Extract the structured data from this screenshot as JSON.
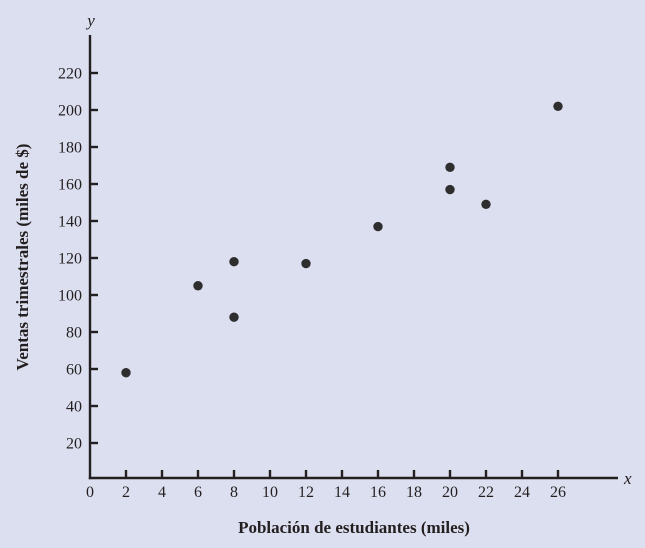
{
  "figure": {
    "background_color": "#dcdfef",
    "axis_color": "#231f20",
    "text_color": "#231f20",
    "point_color": "#2e2e2e"
  },
  "chart_data": {
    "type": "scatter",
    "title": "",
    "xlabel": "Población de estudiantes (miles)",
    "ylabel": "Ventas trimestrales (miles de $)",
    "x_axis_letter": "x",
    "y_axis_letter": "y",
    "origin_label": "0",
    "xlim": [
      0,
      29
    ],
    "ylim": [
      0,
      240
    ],
    "x_ticks": [
      2,
      4,
      6,
      8,
      10,
      12,
      14,
      16,
      18,
      20,
      22,
      24,
      26
    ],
    "y_ticks": [
      20,
      40,
      60,
      80,
      100,
      120,
      140,
      160,
      180,
      200,
      220
    ],
    "grid": false,
    "legend": false,
    "points": [
      {
        "x": 2,
        "y": 58
      },
      {
        "x": 6,
        "y": 105
      },
      {
        "x": 8,
        "y": 88
      },
      {
        "x": 8,
        "y": 118
      },
      {
        "x": 12,
        "y": 117
      },
      {
        "x": 16,
        "y": 137
      },
      {
        "x": 20,
        "y": 157
      },
      {
        "x": 20,
        "y": 169
      },
      {
        "x": 22,
        "y": 149
      },
      {
        "x": 26,
        "y": 202
      }
    ]
  }
}
